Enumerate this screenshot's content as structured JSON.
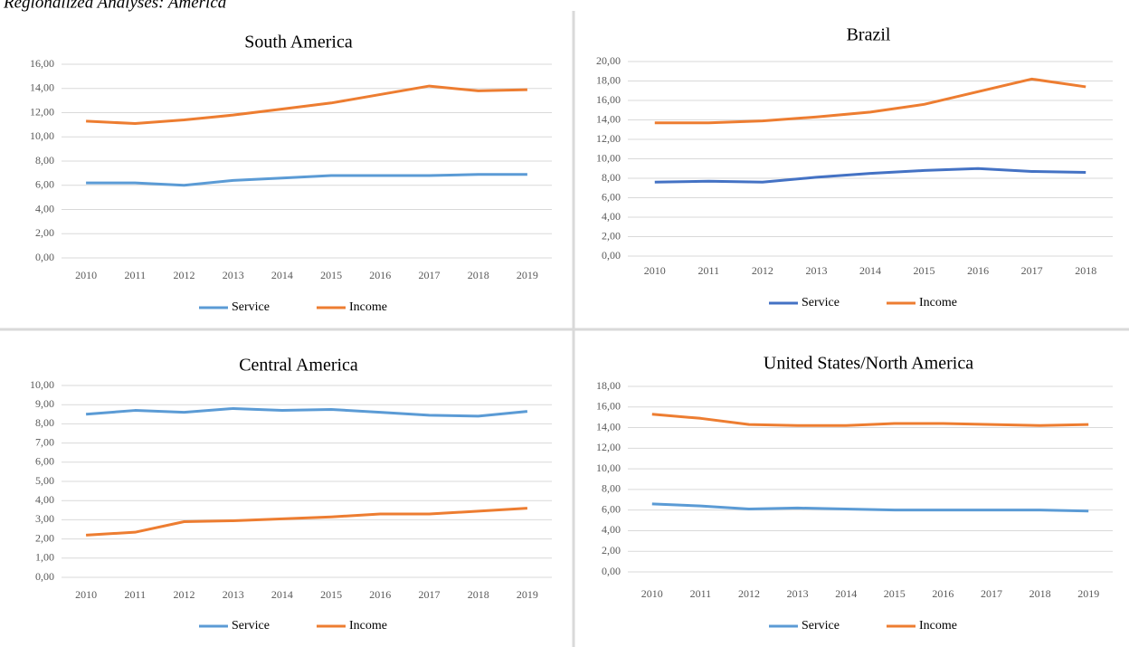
{
  "figure_title": "Regionalized Analyses: America",
  "chart_data": [
    {
      "type": "line",
      "title": "South America",
      "categories": [
        "2010",
        "2011",
        "2012",
        "2013",
        "2014",
        "2015",
        "2016",
        "2017",
        "2018",
        "2019"
      ],
      "series": [
        {
          "name": "Service",
          "color": "#5b9bd5",
          "values": [
            6.2,
            6.2,
            6.0,
            6.4,
            6.6,
            6.8,
            6.8,
            6.8,
            6.9,
            6.9
          ]
        },
        {
          "name": "Income",
          "color": "#ed7d31",
          "values": [
            11.3,
            11.1,
            11.4,
            11.8,
            12.3,
            12.8,
            13.5,
            14.2,
            13.8,
            13.9
          ]
        }
      ],
      "ylim": [
        0,
        16
      ],
      "yticks": [
        {
          "value": 0,
          "label": "0,00"
        },
        {
          "value": 2,
          "label": "2,00"
        },
        {
          "value": 4,
          "label": "4,00"
        },
        {
          "value": 6,
          "label": "6,00"
        },
        {
          "value": 8,
          "label": "8,00"
        },
        {
          "value": 10,
          "label": "10,00"
        },
        {
          "value": 12,
          "label": "12,00"
        },
        {
          "value": 14,
          "label": "14,00"
        },
        {
          "value": 16,
          "label": "16,00"
        }
      ],
      "grid": true,
      "legend": "bottom"
    },
    {
      "type": "line",
      "title": "Brazil",
      "categories": [
        "2010",
        "2011",
        "2012",
        "2013",
        "2014",
        "2015",
        "2016",
        "2017",
        "2018"
      ],
      "series": [
        {
          "name": "Service",
          "color": "#4472c4",
          "values": [
            7.6,
            7.7,
            7.6,
            8.1,
            8.5,
            8.8,
            9.0,
            8.7,
            8.6
          ]
        },
        {
          "name": "Income",
          "color": "#ed7d31",
          "values": [
            13.7,
            13.7,
            13.9,
            14.3,
            14.8,
            15.6,
            16.9,
            18.2,
            17.4
          ]
        }
      ],
      "ylim": [
        0,
        20
      ],
      "yticks": [
        {
          "value": 0,
          "label": "0,00"
        },
        {
          "value": 2,
          "label": "2,00"
        },
        {
          "value": 4,
          "label": "4,00"
        },
        {
          "value": 6,
          "label": "6,00"
        },
        {
          "value": 8,
          "label": "8,00"
        },
        {
          "value": 10,
          "label": "10,00"
        },
        {
          "value": 12,
          "label": "12,00"
        },
        {
          "value": 14,
          "label": "14,00"
        },
        {
          "value": 16,
          "label": "16,00"
        },
        {
          "value": 18,
          "label": "18,00"
        },
        {
          "value": 20,
          "label": "20,00"
        }
      ],
      "grid": true,
      "legend": "bottom"
    },
    {
      "type": "line",
      "title": "Central America",
      "categories": [
        "2010",
        "2011",
        "2012",
        "2013",
        "2014",
        "2015",
        "2016",
        "2017",
        "2018",
        "2019"
      ],
      "series": [
        {
          "name": "Service",
          "color": "#5b9bd5",
          "values": [
            8.5,
            8.7,
            8.6,
            8.8,
            8.7,
            8.75,
            8.6,
            8.45,
            8.4,
            8.65
          ]
        },
        {
          "name": "Income",
          "color": "#ed7d31",
          "values": [
            2.2,
            2.35,
            2.9,
            2.95,
            3.05,
            3.15,
            3.3,
            3.3,
            3.45,
            3.6
          ]
        }
      ],
      "ylim": [
        0,
        10
      ],
      "yticks": [
        {
          "value": 0,
          "label": "0,00"
        },
        {
          "value": 1,
          "label": "1,00"
        },
        {
          "value": 2,
          "label": "2,00"
        },
        {
          "value": 3,
          "label": "3,00"
        },
        {
          "value": 4,
          "label": "4,00"
        },
        {
          "value": 5,
          "label": "5,00"
        },
        {
          "value": 6,
          "label": "6,00"
        },
        {
          "value": 7,
          "label": "7,00"
        },
        {
          "value": 8,
          "label": "8,00"
        },
        {
          "value": 9,
          "label": "9,00"
        },
        {
          "value": 10,
          "label": "10,00"
        }
      ],
      "grid": true,
      "legend": "bottom"
    },
    {
      "type": "line",
      "title": "United States/North America",
      "categories": [
        "2010",
        "2011",
        "2012",
        "2013",
        "2014",
        "2015",
        "2016",
        "2017",
        "2018",
        "2019"
      ],
      "series": [
        {
          "name": "Service",
          "color": "#5b9bd5",
          "values": [
            6.6,
            6.4,
            6.1,
            6.2,
            6.1,
            6.0,
            6.0,
            6.0,
            6.0,
            5.9
          ]
        },
        {
          "name": "Income",
          "color": "#ed7d31",
          "values": [
            15.3,
            14.9,
            14.3,
            14.2,
            14.2,
            14.4,
            14.4,
            14.3,
            14.2,
            14.3
          ]
        }
      ],
      "ylim": [
        0,
        18
      ],
      "yticks": [
        {
          "value": 0,
          "label": "0,00"
        },
        {
          "value": 2,
          "label": "2,00"
        },
        {
          "value": 4,
          "label": "4,00"
        },
        {
          "value": 6,
          "label": "6,00"
        },
        {
          "value": 8,
          "label": "8,00"
        },
        {
          "value": 10,
          "label": "10,00"
        },
        {
          "value": 12,
          "label": "12,00"
        },
        {
          "value": 14,
          "label": "14,00"
        },
        {
          "value": 16,
          "label": "16,00"
        },
        {
          "value": 18,
          "label": "18,00"
        }
      ],
      "grid": true,
      "legend": "bottom"
    }
  ]
}
